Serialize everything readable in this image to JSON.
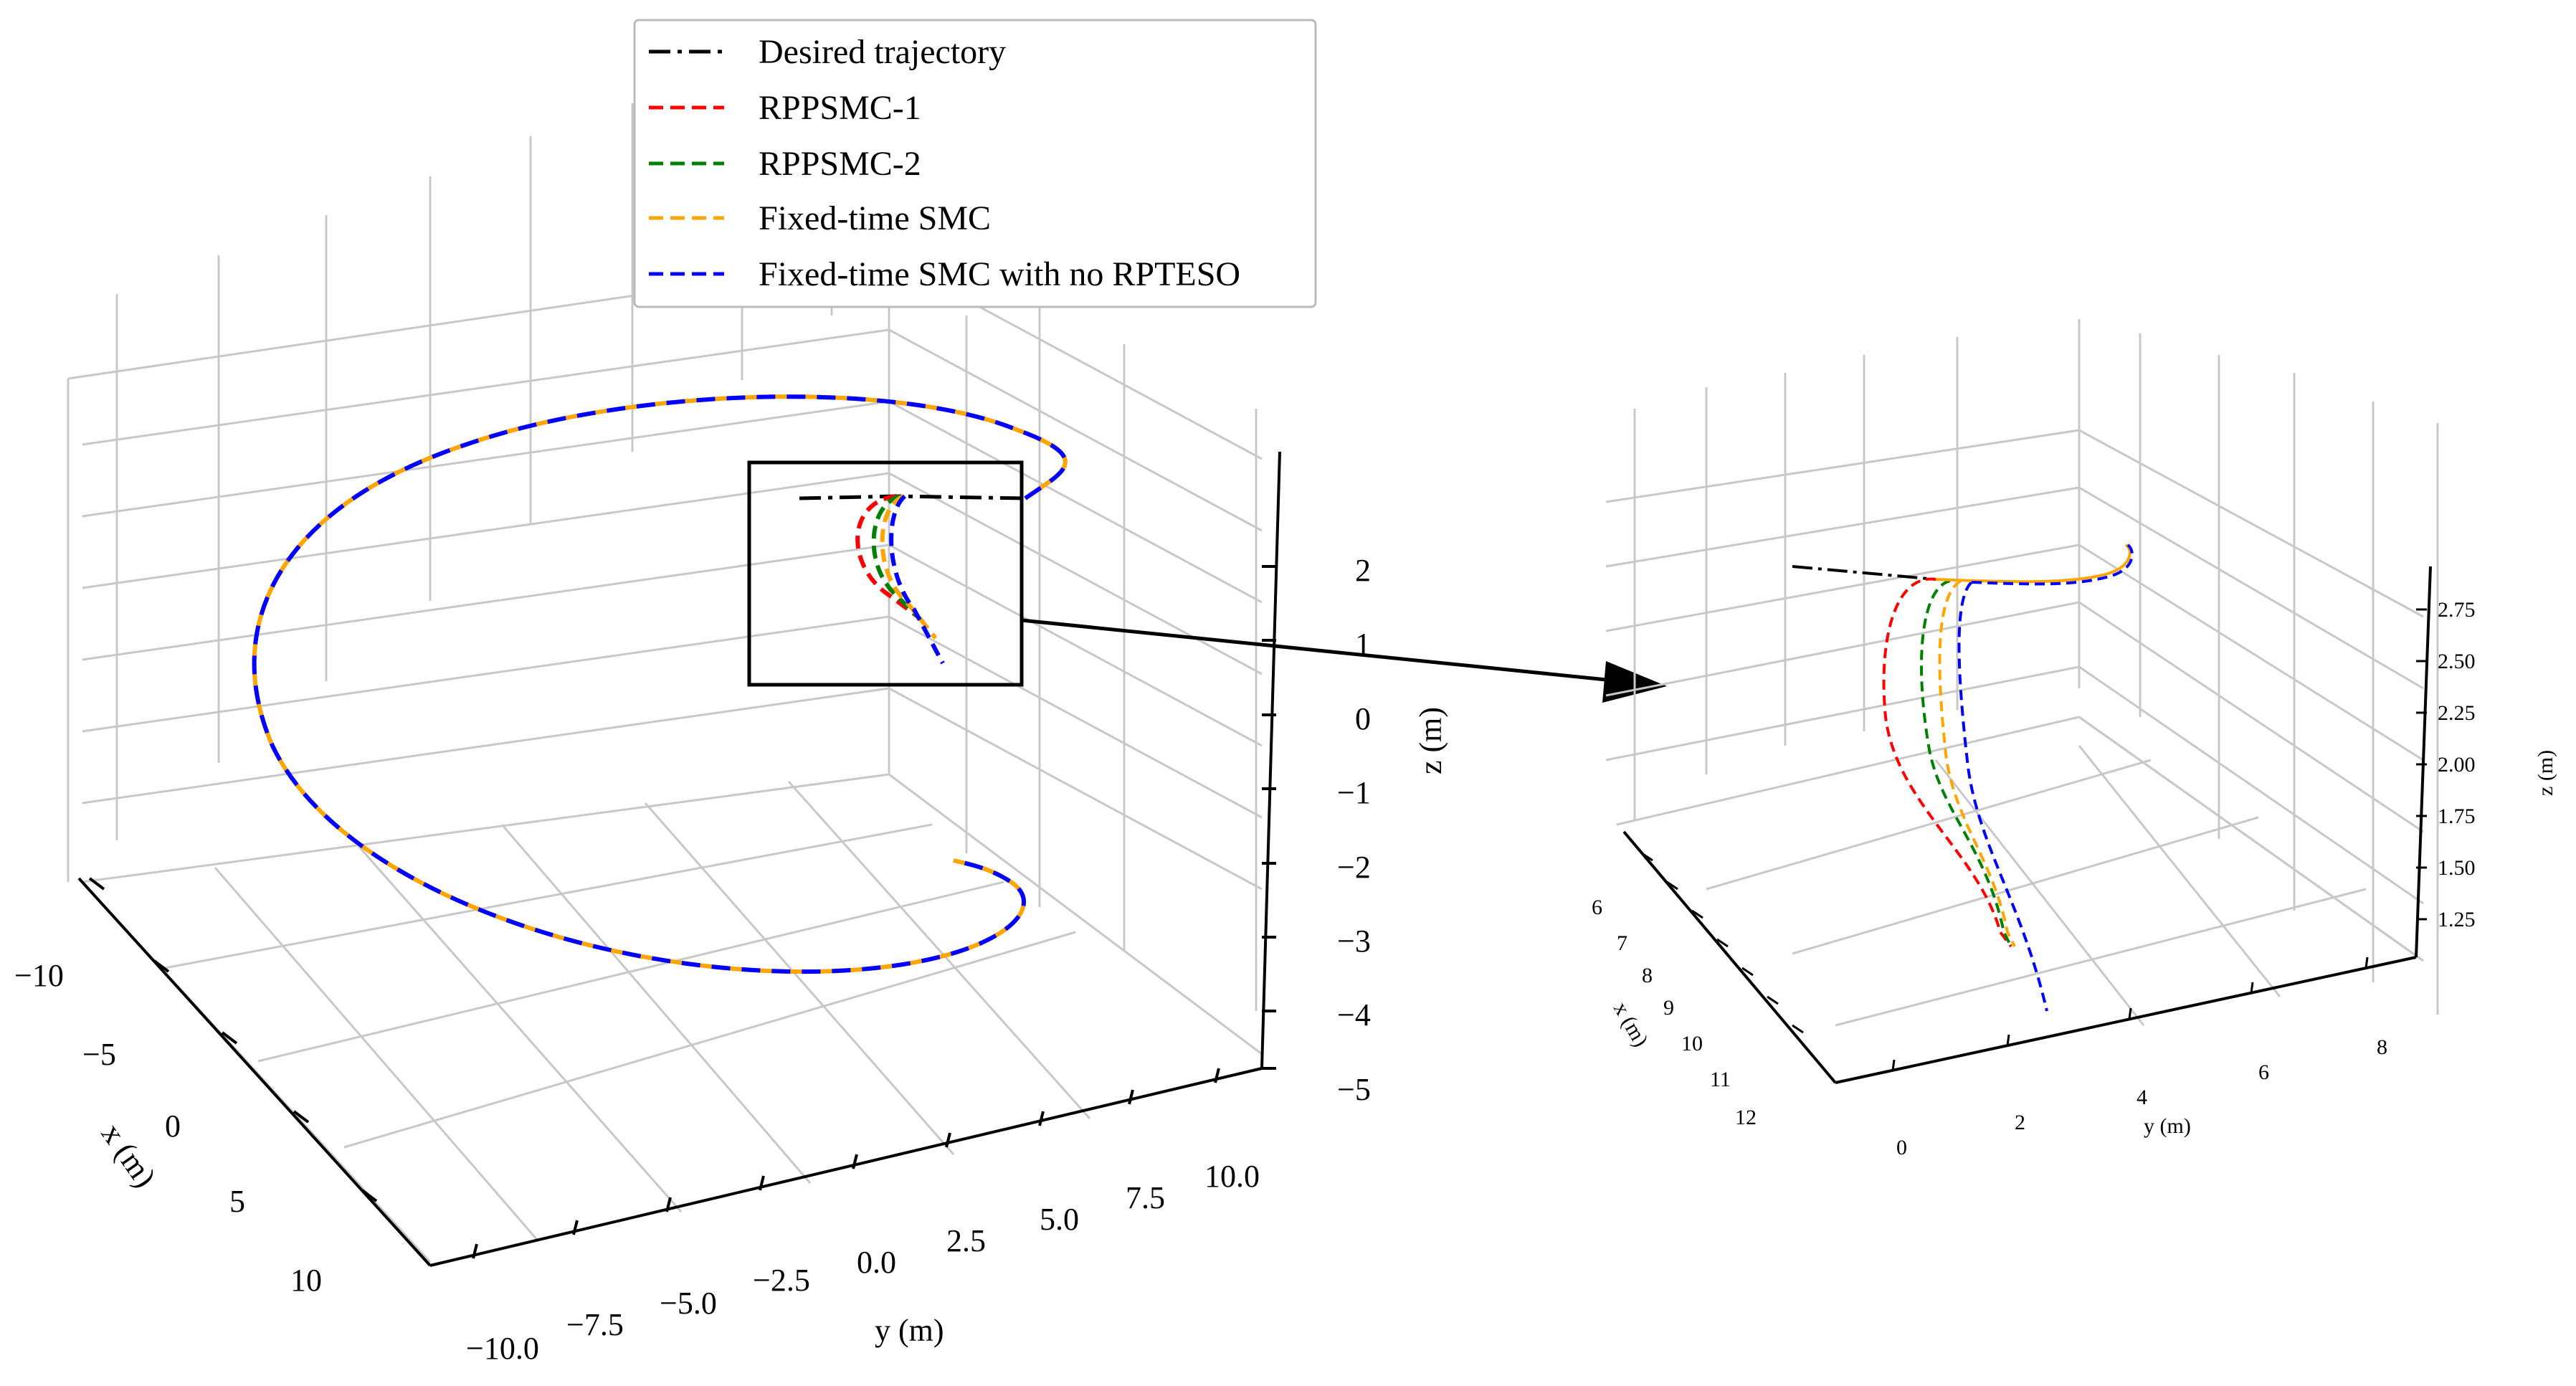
{
  "chart_data": [
    {
      "type": "line",
      "projection": "3d",
      "title": "",
      "xlabel": "x (m)",
      "ylabel": "y (m)",
      "zlabel": "z (m)",
      "xlim": [
        -12,
        12
      ],
      "ylim": [
        -11,
        11
      ],
      "zlim": [
        -5,
        3
      ],
      "x_ticks": [
        "−10",
        "−5",
        "0",
        "5",
        "10"
      ],
      "y_ticks": [
        "−10.0",
        "−7.5",
        "−5.0",
        "−2.5",
        "0.0",
        "2.5",
        "5.0",
        "7.5",
        "10.0"
      ],
      "z_ticks": [
        "2",
        "1",
        "0",
        "−1",
        "−2",
        "−3",
        "−4",
        "−5"
      ],
      "series": [
        {
          "name": "Desired trajectory",
          "style": "dashdot",
          "color": "#000000"
        },
        {
          "name": "RPPSMC-1",
          "style": "dashed",
          "color": "#ff0000"
        },
        {
          "name": "RPPSMC-2",
          "style": "dashed",
          "color": "#008000"
        },
        {
          "name": "Fixed-time SMC",
          "style": "dashed",
          "color": "#ffa500"
        },
        {
          "name": "Fixed-time SMC with no RPTESO",
          "style": "dashed",
          "color": "#0000ff"
        }
      ],
      "trajectory": "spiral of radius about 10 m around the z axis, rising with time; all controllers converge onto the desired trajectory"
    },
    {
      "type": "line",
      "projection": "3d",
      "title": "",
      "xlabel": "x (m)",
      "ylabel": "y (m)",
      "zlabel": "z (m)",
      "xlim": [
        5.5,
        12.5
      ],
      "ylim": [
        0,
        9
      ],
      "zlim": [
        1.0,
        2.9
      ],
      "x_ticks": [
        "6",
        "7",
        "8",
        "9",
        "10",
        "11",
        "12"
      ],
      "y_ticks": [
        "0",
        "2",
        "4",
        "6",
        "8"
      ],
      "z_ticks": [
        "2.75",
        "2.50",
        "2.25",
        "2.00",
        "1.75",
        "1.50",
        "1.25"
      ],
      "note": "zoomed view of the initial convergence region"
    }
  ],
  "legend": {
    "entries": [
      {
        "label": "Desired trajectory",
        "color": "#000000",
        "dash": "dashdot"
      },
      {
        "label": "RPPSMC-1",
        "color": "#ff0000",
        "dash": "dashed"
      },
      {
        "label": "RPPSMC-2",
        "color": "#008000",
        "dash": "dashed"
      },
      {
        "label": "Fixed-time SMC",
        "color": "#ffa500",
        "dash": "dashed"
      },
      {
        "label": "Fixed-time SMC with no RPTESO",
        "color": "#0000ff",
        "dash": "dashed"
      }
    ]
  }
}
